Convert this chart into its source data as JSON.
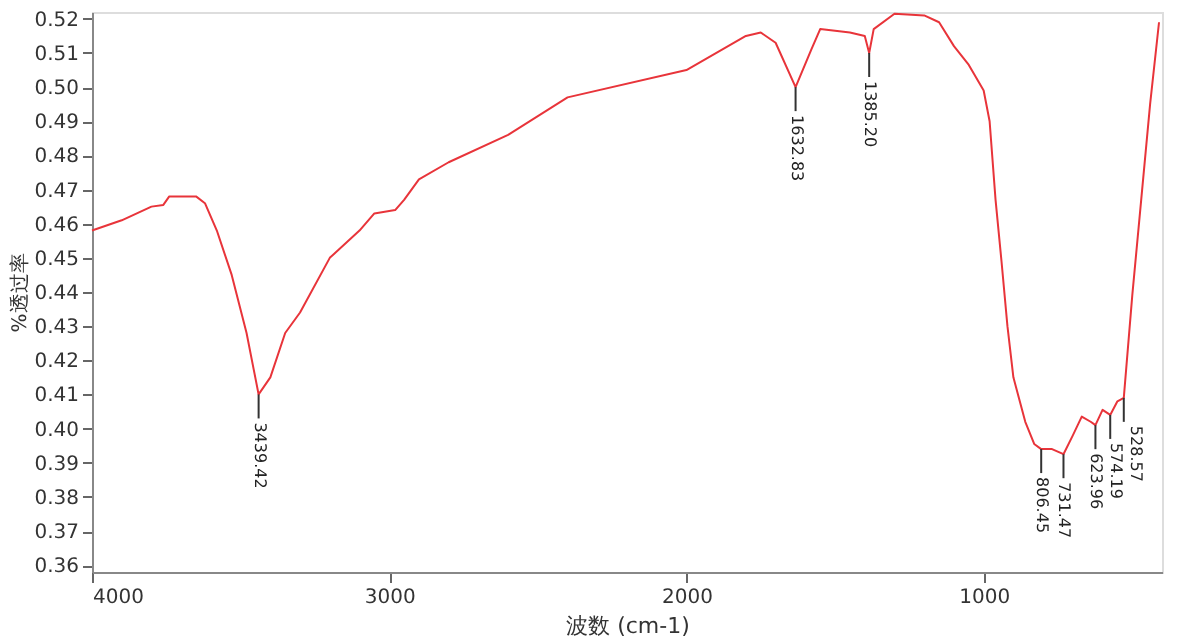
{
  "chart_data": {
    "type": "line",
    "xlabel": "波数 (cm-1)",
    "ylabel": "%透过率",
    "xlim": [
      4000,
      400
    ],
    "xticks": [
      4000,
      3000,
      2000,
      1000
    ],
    "ylim": [
      0.358,
      0.522
    ],
    "yticks": [
      0.36,
      0.37,
      0.38,
      0.39,
      {
        "value": 0.4,
        "label": "0.40"
      },
      0.41,
      0.42,
      0.43,
      0.44,
      0.45,
      0.46,
      0.47,
      0.48,
      0.49,
      {
        "value": 0.5,
        "label": "0.50"
      },
      0.51,
      0.52
    ],
    "grid": false,
    "marker": "none",
    "line_style": "solid",
    "series": [
      {
        "color": "#e8343a",
        "x": [
          4000,
          3900,
          3800,
          3760,
          3740,
          3650,
          3620,
          3580,
          3530,
          3480,
          3439.42,
          3400,
          3350,
          3300,
          3200,
          3100,
          3050,
          2980,
          2950,
          2900,
          2800,
          2600,
          2400,
          2000,
          1800,
          1750,
          1700,
          1632.83,
          1580,
          1550,
          1450,
          1400,
          1385.2,
          1370,
          1300,
          1200,
          1150,
          1100,
          1050,
          1000,
          980,
          960,
          940,
          920,
          900,
          860,
          830,
          806.45,
          770,
          731.47,
          700,
          670,
          640,
          623.96,
          600,
          574.19,
          550,
          528.57,
          500,
          470,
          440,
          410
        ],
        "values": [
          0.458,
          0.461,
          0.465,
          0.4655,
          0.468,
          0.468,
          0.466,
          0.458,
          0.445,
          0.428,
          0.41,
          0.415,
          0.428,
          0.434,
          0.45,
          0.458,
          0.463,
          0.464,
          0.467,
          0.473,
          0.478,
          0.486,
          0.497,
          0.505,
          0.515,
          0.516,
          0.513,
          0.5,
          0.511,
          0.517,
          0.516,
          0.515,
          0.51,
          0.517,
          0.5215,
          0.521,
          0.519,
          0.512,
          0.5065,
          0.499,
          0.49,
          0.467,
          0.449,
          0.43,
          0.415,
          0.402,
          0.3955,
          0.394,
          0.394,
          0.3925,
          0.398,
          0.4035,
          0.402,
          0.401,
          0.4055,
          0.404,
          0.408,
          0.409,
          0.439,
          0.467,
          0.495,
          0.519
        ]
      }
    ],
    "annotations": [
      {
        "text": "3439.42",
        "x": 3439.42,
        "y": 0.41
      },
      {
        "text": "1632.83",
        "x": 1632.83,
        "y": 0.5
      },
      {
        "text": "1385.20",
        "x": 1385.2,
        "y": 0.51
      },
      {
        "text": "806.45",
        "x": 806.45,
        "y": 0.394
      },
      {
        "text": "731.47",
        "x": 731.47,
        "y": 0.3925
      },
      {
        "text": "623.96",
        "x": 623.96,
        "y": 0.401
      },
      {
        "text": "574.19",
        "x": 574.19,
        "y": 0.404
      },
      {
        "text": "528.57",
        "x": 528.57,
        "y": 0.409
      }
    ]
  }
}
